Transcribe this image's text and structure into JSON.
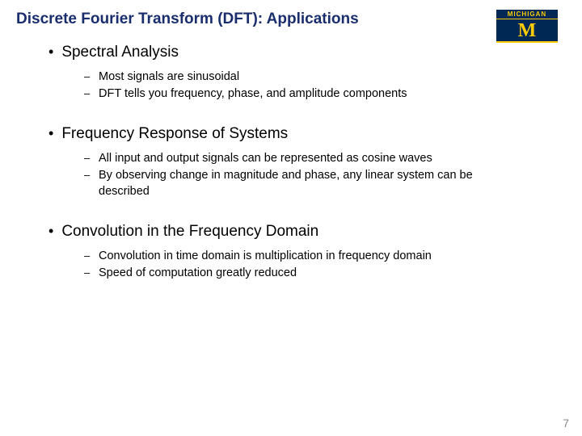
{
  "title": "Discrete Fourier Transform (DFT): Applications",
  "logo": {
    "text_top": "MICHIGAN",
    "letter": "M"
  },
  "sections": [
    {
      "heading": "Spectral Analysis",
      "items": [
        "Most signals are sinusoidal",
        "DFT tells you frequency, phase, and amplitude components"
      ]
    },
    {
      "heading": "Frequency Response of Systems",
      "items": [
        "All input and output signals can be represented as cosine waves",
        "By observing change in magnitude and phase, any linear system can be described"
      ]
    },
    {
      "heading": "Convolution in the Frequency Domain",
      "items": [
        "Convolution in time domain is multiplication in frequency domain",
        "Speed of computation greatly reduced"
      ]
    }
  ],
  "page_number": "7",
  "colors": {
    "title_color": "#1a2e6e",
    "logo_bg": "#002855",
    "logo_fg": "#ffcb05",
    "text": "#000000",
    "page_num": "#888888",
    "background": "#ffffff"
  }
}
